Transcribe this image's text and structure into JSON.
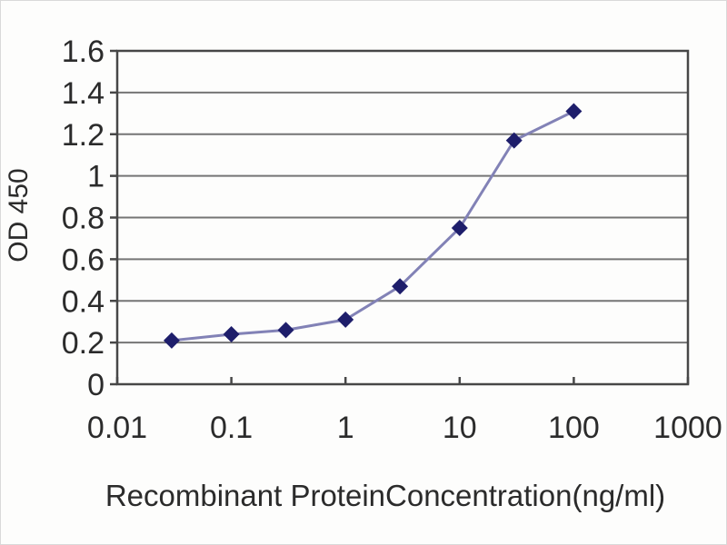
{
  "page": {
    "background": "#fdfdfc",
    "border_color": "#d9d9d9"
  },
  "chart_data": {
    "type": "line",
    "title": "",
    "xlabel": "Recombinant ProteinConcentration(ng/ml)",
    "ylabel": "OD 450",
    "x_scale": "log",
    "x": [
      0.03,
      0.1,
      0.3,
      1,
      3,
      10,
      30,
      100
    ],
    "series": [
      {
        "name": "OD 450",
        "values": [
          0.21,
          0.24,
          0.26,
          0.31,
          0.47,
          0.75,
          1.17,
          1.31
        ]
      }
    ],
    "xlim": [
      0.01,
      1000
    ],
    "ylim": [
      0,
      1.6
    ],
    "x_ticks": [
      0.01,
      0.1,
      1,
      10,
      100,
      1000
    ],
    "x_tick_labels": [
      "0.01",
      "0.1",
      "1",
      "10",
      "100",
      "1000"
    ],
    "y_ticks": [
      0,
      0.2,
      0.4,
      0.6,
      0.8,
      1,
      1.2,
      1.4,
      1.6
    ],
    "y_tick_labels": [
      "0",
      "0.2",
      "0.4",
      "0.6",
      "0.8",
      "1",
      "1.2",
      "1.4",
      "1.6"
    ],
    "grid": "horizontal",
    "legend": "none",
    "marker": "diamond",
    "colors": {
      "line": "#8282b6",
      "marker": "#1e1e6b",
      "grid": "#757575",
      "axis_box": "#474747",
      "text": "#2b2b2b"
    }
  }
}
